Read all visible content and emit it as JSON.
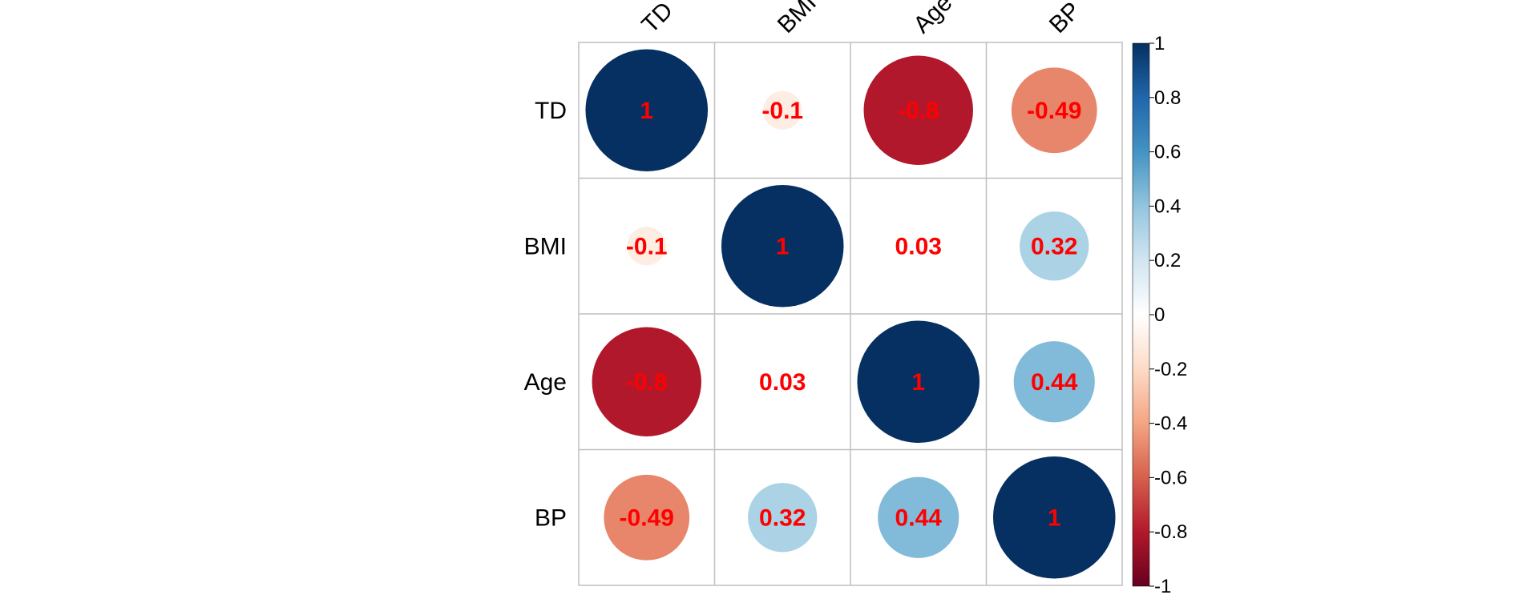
{
  "chart_data": {
    "type": "heatmap",
    "variables": [
      "TD",
      "BMI",
      "Age",
      "BP"
    ],
    "matrix": [
      [
        1,
        -0.1,
        -0.8,
        -0.49
      ],
      [
        -0.1,
        1,
        0.03,
        0.32
      ],
      [
        -0.8,
        0.03,
        1,
        0.44
      ],
      [
        -0.49,
        0.32,
        0.44,
        1
      ]
    ],
    "value_labels": [
      [
        "1",
        "-0.1",
        "-0.8",
        "-0.49"
      ],
      [
        "-0.1",
        "1",
        "0.03",
        "0.32"
      ],
      [
        "-0.8",
        "0.03",
        "1",
        "0.44"
      ],
      [
        "-0.49",
        "0.32",
        "0.44",
        "1"
      ]
    ],
    "legend": {
      "range": [
        -1,
        1
      ],
      "ticks": [
        "1",
        "0.8",
        "0.6",
        "0.4",
        "0.2",
        "0",
        "-0.2",
        "-0.4",
        "-0.6",
        "-0.8",
        "-1"
      ],
      "placement": "right"
    },
    "marker": "circle",
    "label_color": "#ff0000",
    "grid": true,
    "colors": {
      "negative_end": "#67001f",
      "positive_end": "#053061",
      "grid": "#bfbfbf",
      "border": "#000000"
    }
  }
}
